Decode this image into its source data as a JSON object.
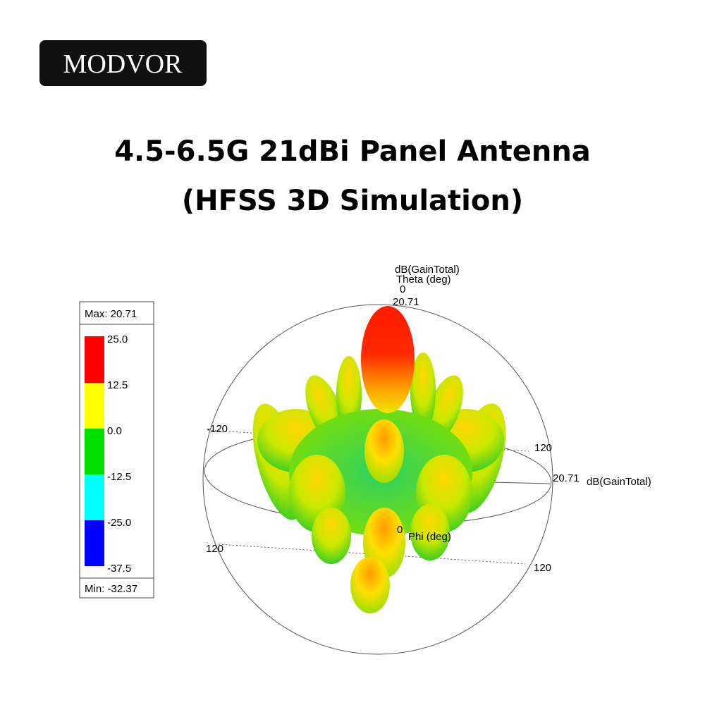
{
  "brand": "MODVOR",
  "title": {
    "line1": "4.5-6.5G 21dBi Panel Antenna",
    "line2": "(HFSS 3D Simulation)"
  },
  "legend": {
    "max": "Max: 20.71",
    "min": "Min: -32.37",
    "ticks": [
      "25.0",
      "12.5",
      "0.0",
      "-12.5",
      "-25.0",
      "-37.5"
    ]
  },
  "plot": {
    "theta_quantity": "dB(GainTotal)",
    "theta_axis": "Theta (deg)",
    "theta_zero": "0",
    "theta_value": "20.71",
    "left_tick": "-120",
    "right_tick": "120",
    "radial_value": "20.71",
    "radial_quantity": "dB(GainTotal)",
    "phi_zero": "0",
    "phi_axis": "Phi (deg)",
    "lower_left_tick": "120",
    "lower_right_tick": "120"
  }
}
